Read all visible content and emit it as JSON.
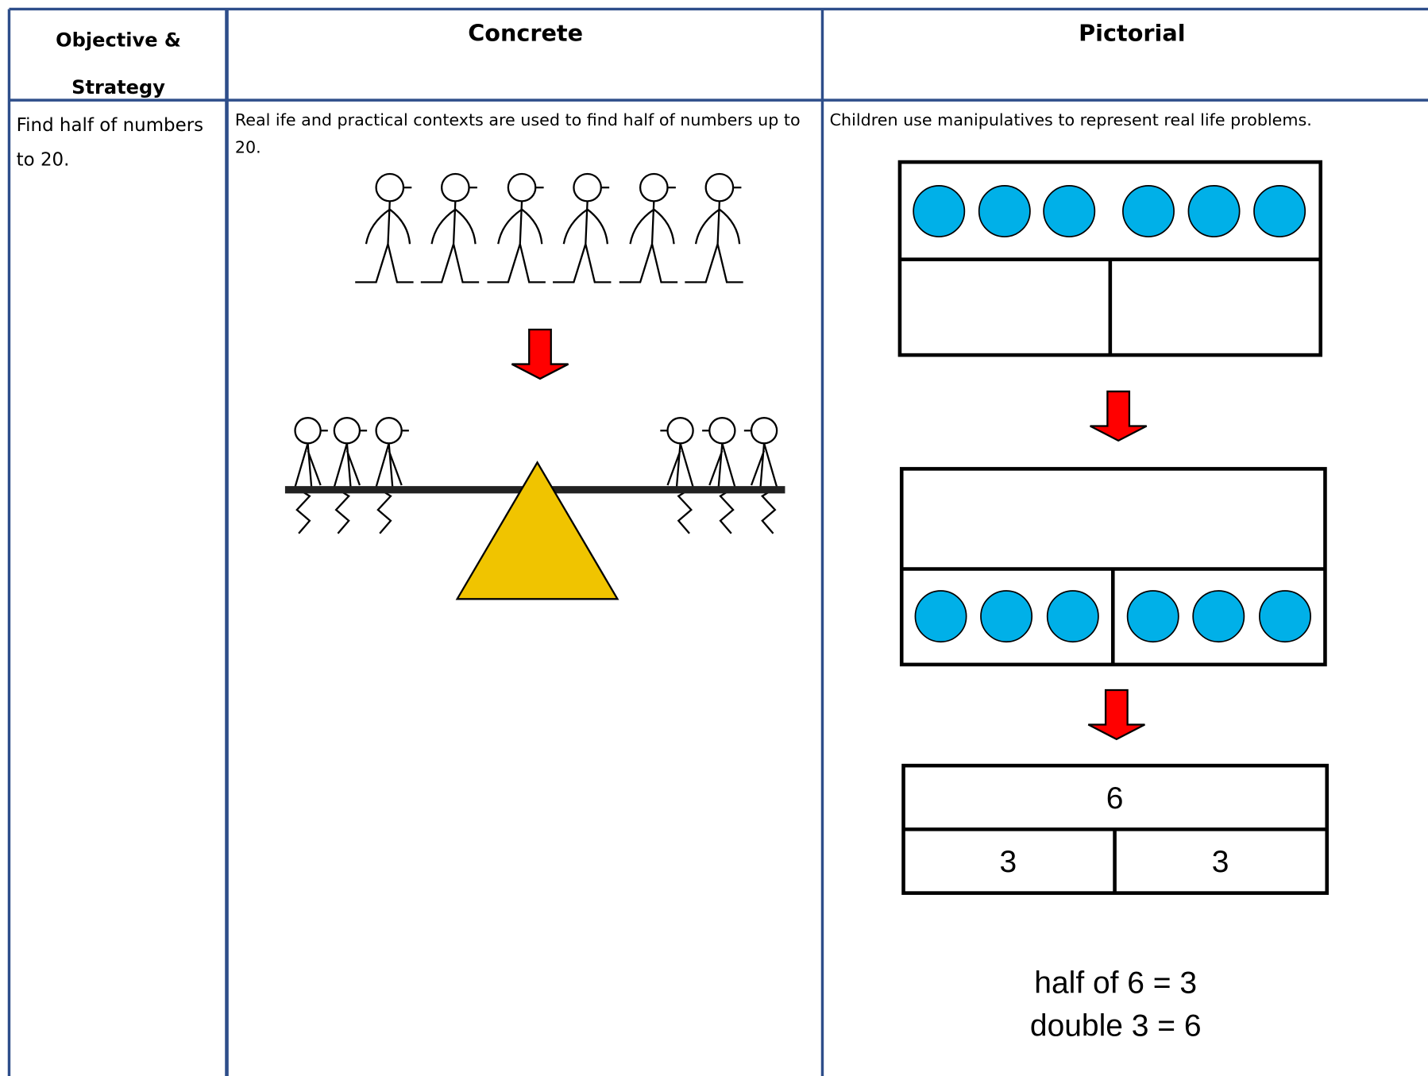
{
  "table": {
    "headers": [
      "Objective & Strategy",
      "Concrete",
      "Pictorial"
    ],
    "rows": [
      [
        "Find half of numbers to 20.",
        "Real ife and practical contexts are used to find half of numbers up to 20.",
        "Children use manipulatives to represent real life problems."
      ]
    ]
  },
  "bar_model": {
    "whole": "6",
    "parts": [
      "3",
      "3"
    ]
  },
  "equations": [
    "half of 6 = 3",
    "double 3 = 6"
  ]
}
